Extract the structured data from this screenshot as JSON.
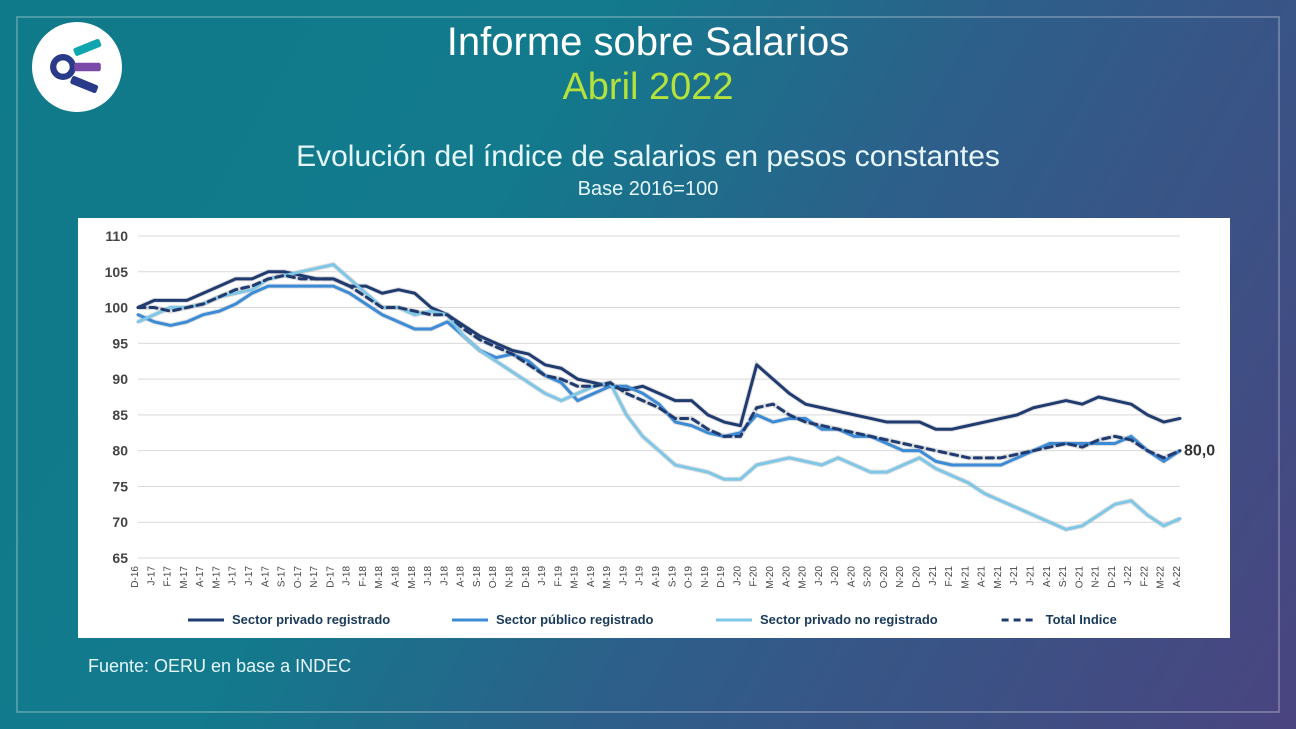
{
  "header": {
    "title": "Informe sobre Salarios",
    "period": "Abril 2022",
    "subtitle": "Evolución del índice de salarios en pesos constantes",
    "subtitle2": "Base 2016=100"
  },
  "footer": {
    "source": "Fuente: OERU en base a INDEC"
  },
  "logo": {
    "ring_color": "#2a3a8a",
    "bar1_color": "#0fa6b0",
    "bar2_color": "#7a4aa8",
    "bar3_color": "#2a3a8a"
  },
  "chart": {
    "type": "line",
    "background_color": "#ffffff",
    "grid_color": "#d9d9d9",
    "ylim": [
      65,
      110
    ],
    "ytick_step": 5,
    "yticks": [
      65,
      70,
      75,
      80,
      85,
      90,
      95,
      100,
      105,
      110
    ],
    "x_labels": [
      "D-16",
      "J-17",
      "F-17",
      "M-17",
      "A-17",
      "M-17",
      "J-17",
      "J-17",
      "A-17",
      "S-17",
      "O-17",
      "N-17",
      "D-17",
      "J-18",
      "F-18",
      "M-18",
      "A-18",
      "M-18",
      "J-18",
      "J-18",
      "A-18",
      "S-18",
      "O-18",
      "N-18",
      "D-18",
      "J-19",
      "F-19",
      "M-19",
      "A-19",
      "M-19",
      "J-19",
      "J-19",
      "A-19",
      "S-19",
      "O-19",
      "N-19",
      "D-19",
      "J-20",
      "F-20",
      "M-20",
      "A-20",
      "M-20",
      "J-20",
      "J-20",
      "A-20",
      "S-20",
      "O-20",
      "N-20",
      "D-20",
      "J-21",
      "F-21",
      "M-21",
      "A-21",
      "M-21",
      "J-21",
      "J-21",
      "A-21",
      "S-21",
      "O-21",
      "N-21",
      "D-21",
      "J-22",
      "F-22",
      "M-22",
      "A-22"
    ],
    "series": [
      {
        "name": "Sector privado registrado",
        "color": "#1f3b70",
        "dash": null,
        "values": [
          100,
          101,
          101,
          101,
          102,
          103,
          104,
          104,
          105,
          105,
          104.5,
          104,
          104,
          103,
          103,
          102,
          102.5,
          102,
          100,
          99,
          97.5,
          96,
          95,
          94,
          93.5,
          92,
          91.5,
          90,
          89.5,
          89,
          88.5,
          89,
          88,
          87,
          87,
          85,
          84,
          83.5,
          92,
          90,
          88,
          86.5,
          86,
          85.5,
          85,
          84.5,
          84,
          84,
          84,
          83,
          83,
          83.5,
          84,
          84.5,
          85,
          86,
          86.5,
          87,
          86.5,
          87.5,
          87,
          86.5,
          85,
          84,
          84.5
        ]
      },
      {
        "name": "Sector público registrado",
        "color": "#3b8bd6",
        "dash": null,
        "values": [
          99,
          98,
          97.5,
          98,
          99,
          99.5,
          100.5,
          102,
          103,
          103,
          103,
          103,
          103,
          102,
          100.5,
          99,
          98,
          97,
          97,
          98,
          96,
          94,
          93,
          93.5,
          92.5,
          90.5,
          89.5,
          87,
          88,
          89,
          89,
          88,
          86.5,
          84,
          83.5,
          82.5,
          82,
          82.5,
          85,
          84,
          84.5,
          84.5,
          83,
          83,
          82,
          82,
          81,
          80,
          80,
          78.5,
          78,
          78,
          78,
          78,
          79,
          80,
          81,
          81,
          81,
          81,
          81,
          82,
          80,
          78.5,
          80
        ]
      },
      {
        "name": "Sector privado no registrado",
        "color": "#7fc7e6",
        "dash": null,
        "values": [
          98,
          99,
          100,
          100,
          100.5,
          101.5,
          102,
          102.5,
          104,
          104.5,
          105,
          105.5,
          106,
          104,
          102,
          100,
          100,
          99,
          99.5,
          99,
          96,
          94,
          92.5,
          91,
          89.5,
          88,
          87,
          88,
          89,
          89.5,
          85,
          82,
          80,
          78,
          77.5,
          77,
          76,
          76,
          78,
          78.5,
          79,
          78.5,
          78,
          79,
          78,
          77,
          77,
          78,
          79,
          77.5,
          76.5,
          75.5,
          74,
          73,
          72,
          71,
          70,
          69,
          69.5,
          71,
          72.5,
          73,
          71,
          69.5,
          70.5
        ]
      },
      {
        "name": "Total Indice",
        "color": "#1f3b70",
        "dash": "7,5",
        "values": [
          100,
          100,
          99.5,
          100,
          100.5,
          101.5,
          102.5,
          103,
          104,
          104.5,
          104,
          104,
          104,
          103,
          101.5,
          100,
          100,
          99.5,
          99,
          99,
          97,
          95.5,
          94.5,
          93.5,
          92,
          90.5,
          90,
          89,
          89,
          89.5,
          88,
          87,
          86,
          84.5,
          84.5,
          83,
          82,
          82,
          86,
          86.5,
          85,
          84,
          83.5,
          83,
          82.5,
          82,
          81.5,
          81,
          80.5,
          80,
          79.5,
          79,
          79,
          79,
          79.5,
          80,
          80.5,
          81,
          80.5,
          81.5,
          82,
          81.5,
          80,
          79,
          80
        ]
      }
    ],
    "end_label": {
      "text": "80,0",
      "series": 3
    },
    "line_width": 3,
    "tick_font_size": 14,
    "xlabel_font_size": 10,
    "legend_font_size": 13
  }
}
